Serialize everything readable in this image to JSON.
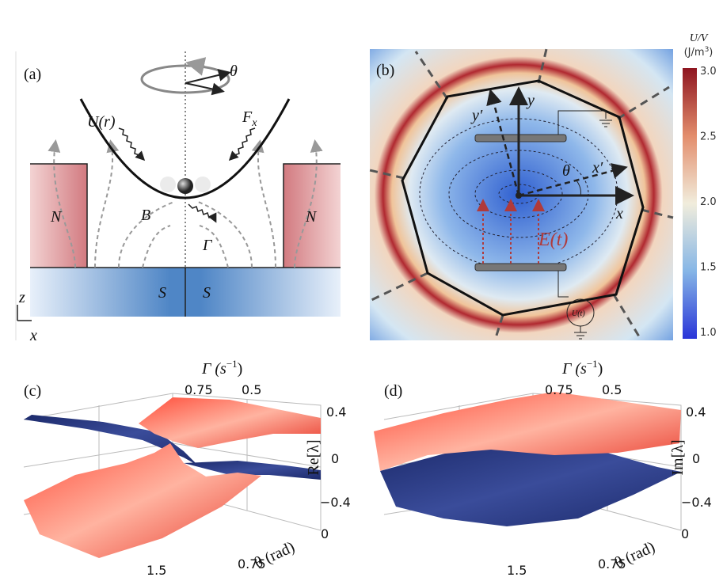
{
  "panel_a": {
    "label": "(a)",
    "theta": "θ",
    "potential": "U(r)",
    "force": {
      "symbol": "F",
      "subscript": "x"
    },
    "field": "B",
    "damping": "Γ",
    "normal_left": "N",
    "normal_right": "N",
    "super_left": "S",
    "super_right": "S",
    "axis_z": "z",
    "axis_x": "x"
  },
  "panel_b": {
    "label": "(b)",
    "axis_y": "y",
    "axis_y_prime": "y′",
    "axis_x_prime": "x′",
    "theta": "θ",
    "axis_x": "x",
    "field": "E(t)",
    "source": "U(t)",
    "colorbar": {
      "title": "U/V",
      "unit": {
        "text": "(J/m",
        "sup": "3",
        "close": ")"
      },
      "ticks": [
        "3.0",
        "2.5",
        "2.0",
        "1.5",
        "1.0"
      ]
    }
  },
  "panel_c": {
    "label": "(c)",
    "gamma_axis": {
      "text": "Γ (s",
      "sup": "−1",
      "close": ")"
    },
    "gamma_ticks": [
      "0.75",
      "0.5"
    ],
    "lambda_ticks": [
      "0.4",
      "0",
      "−0.4"
    ],
    "lambda_axis": "Re[λ]",
    "theta_ticks": [
      "0",
      "0.75",
      "1.5"
    ],
    "theta_axis": "θ (rad)"
  },
  "panel_d": {
    "label": "(d)",
    "gamma_axis": {
      "text": "Γ (s",
      "sup": "−1",
      "close": ")"
    },
    "gamma_ticks": [
      "0.75",
      "0.5"
    ],
    "lambda_ticks": [
      "0.4",
      "0",
      "−0.4"
    ],
    "lambda_axis": "Im[λ]",
    "theta_ticks": [
      "0",
      "0.75",
      "1.5"
    ],
    "theta_axis": "θ (rad)"
  }
}
